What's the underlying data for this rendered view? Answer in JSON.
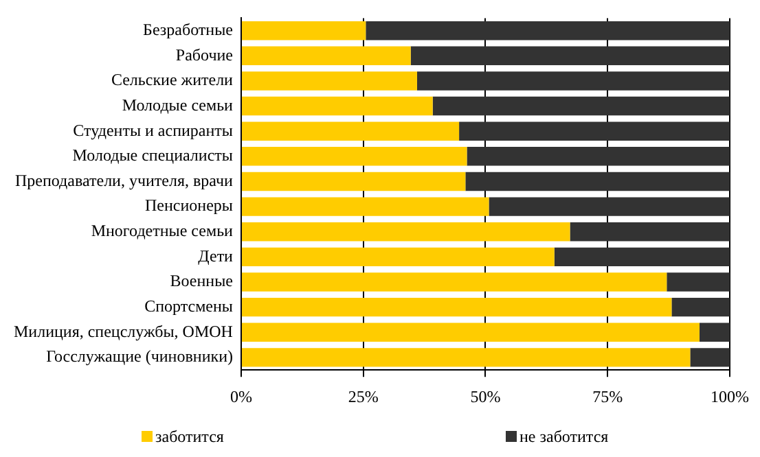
{
  "chart_data": {
    "type": "bar",
    "orientation": "horizontal",
    "stacked": true,
    "categories": [
      "Безработные",
      "Рабочие",
      "Сельские жители",
      "Молодые семьи",
      "Студенты и аспиранты",
      "Молодые специалисты",
      "Преподаватели, учителя, врачи",
      "Пенсионеры",
      "Многодетные семьи",
      "Дети",
      "Военные",
      "Спортсмены",
      "Милиция, спецслужбы, ОМОН",
      "Госслужащие (чиновники)"
    ],
    "series": [
      {
        "name": "заботится",
        "color": "#ffcc00",
        "values": [
          25.5,
          34.7,
          36.0,
          39.2,
          44.6,
          46.2,
          45.9,
          50.7,
          67.3,
          64.1,
          87.1,
          88.1,
          93.8,
          91.9
        ]
      },
      {
        "name": "не заботится",
        "color": "#333333",
        "values": [
          74.5,
          65.3,
          64.0,
          60.8,
          55.4,
          53.8,
          54.1,
          49.3,
          32.7,
          35.9,
          12.9,
          11.9,
          6.2,
          8.1
        ]
      }
    ],
    "xlim": [
      0,
      100
    ],
    "xticks": [
      {
        "value": 0,
        "label": "0%"
      },
      {
        "value": 25,
        "label": "25%"
      },
      {
        "value": 50,
        "label": "50%"
      },
      {
        "value": 75,
        "label": "75%"
      },
      {
        "value": 100,
        "label": "100%"
      }
    ],
    "grid": "x",
    "legend": "bottom"
  }
}
